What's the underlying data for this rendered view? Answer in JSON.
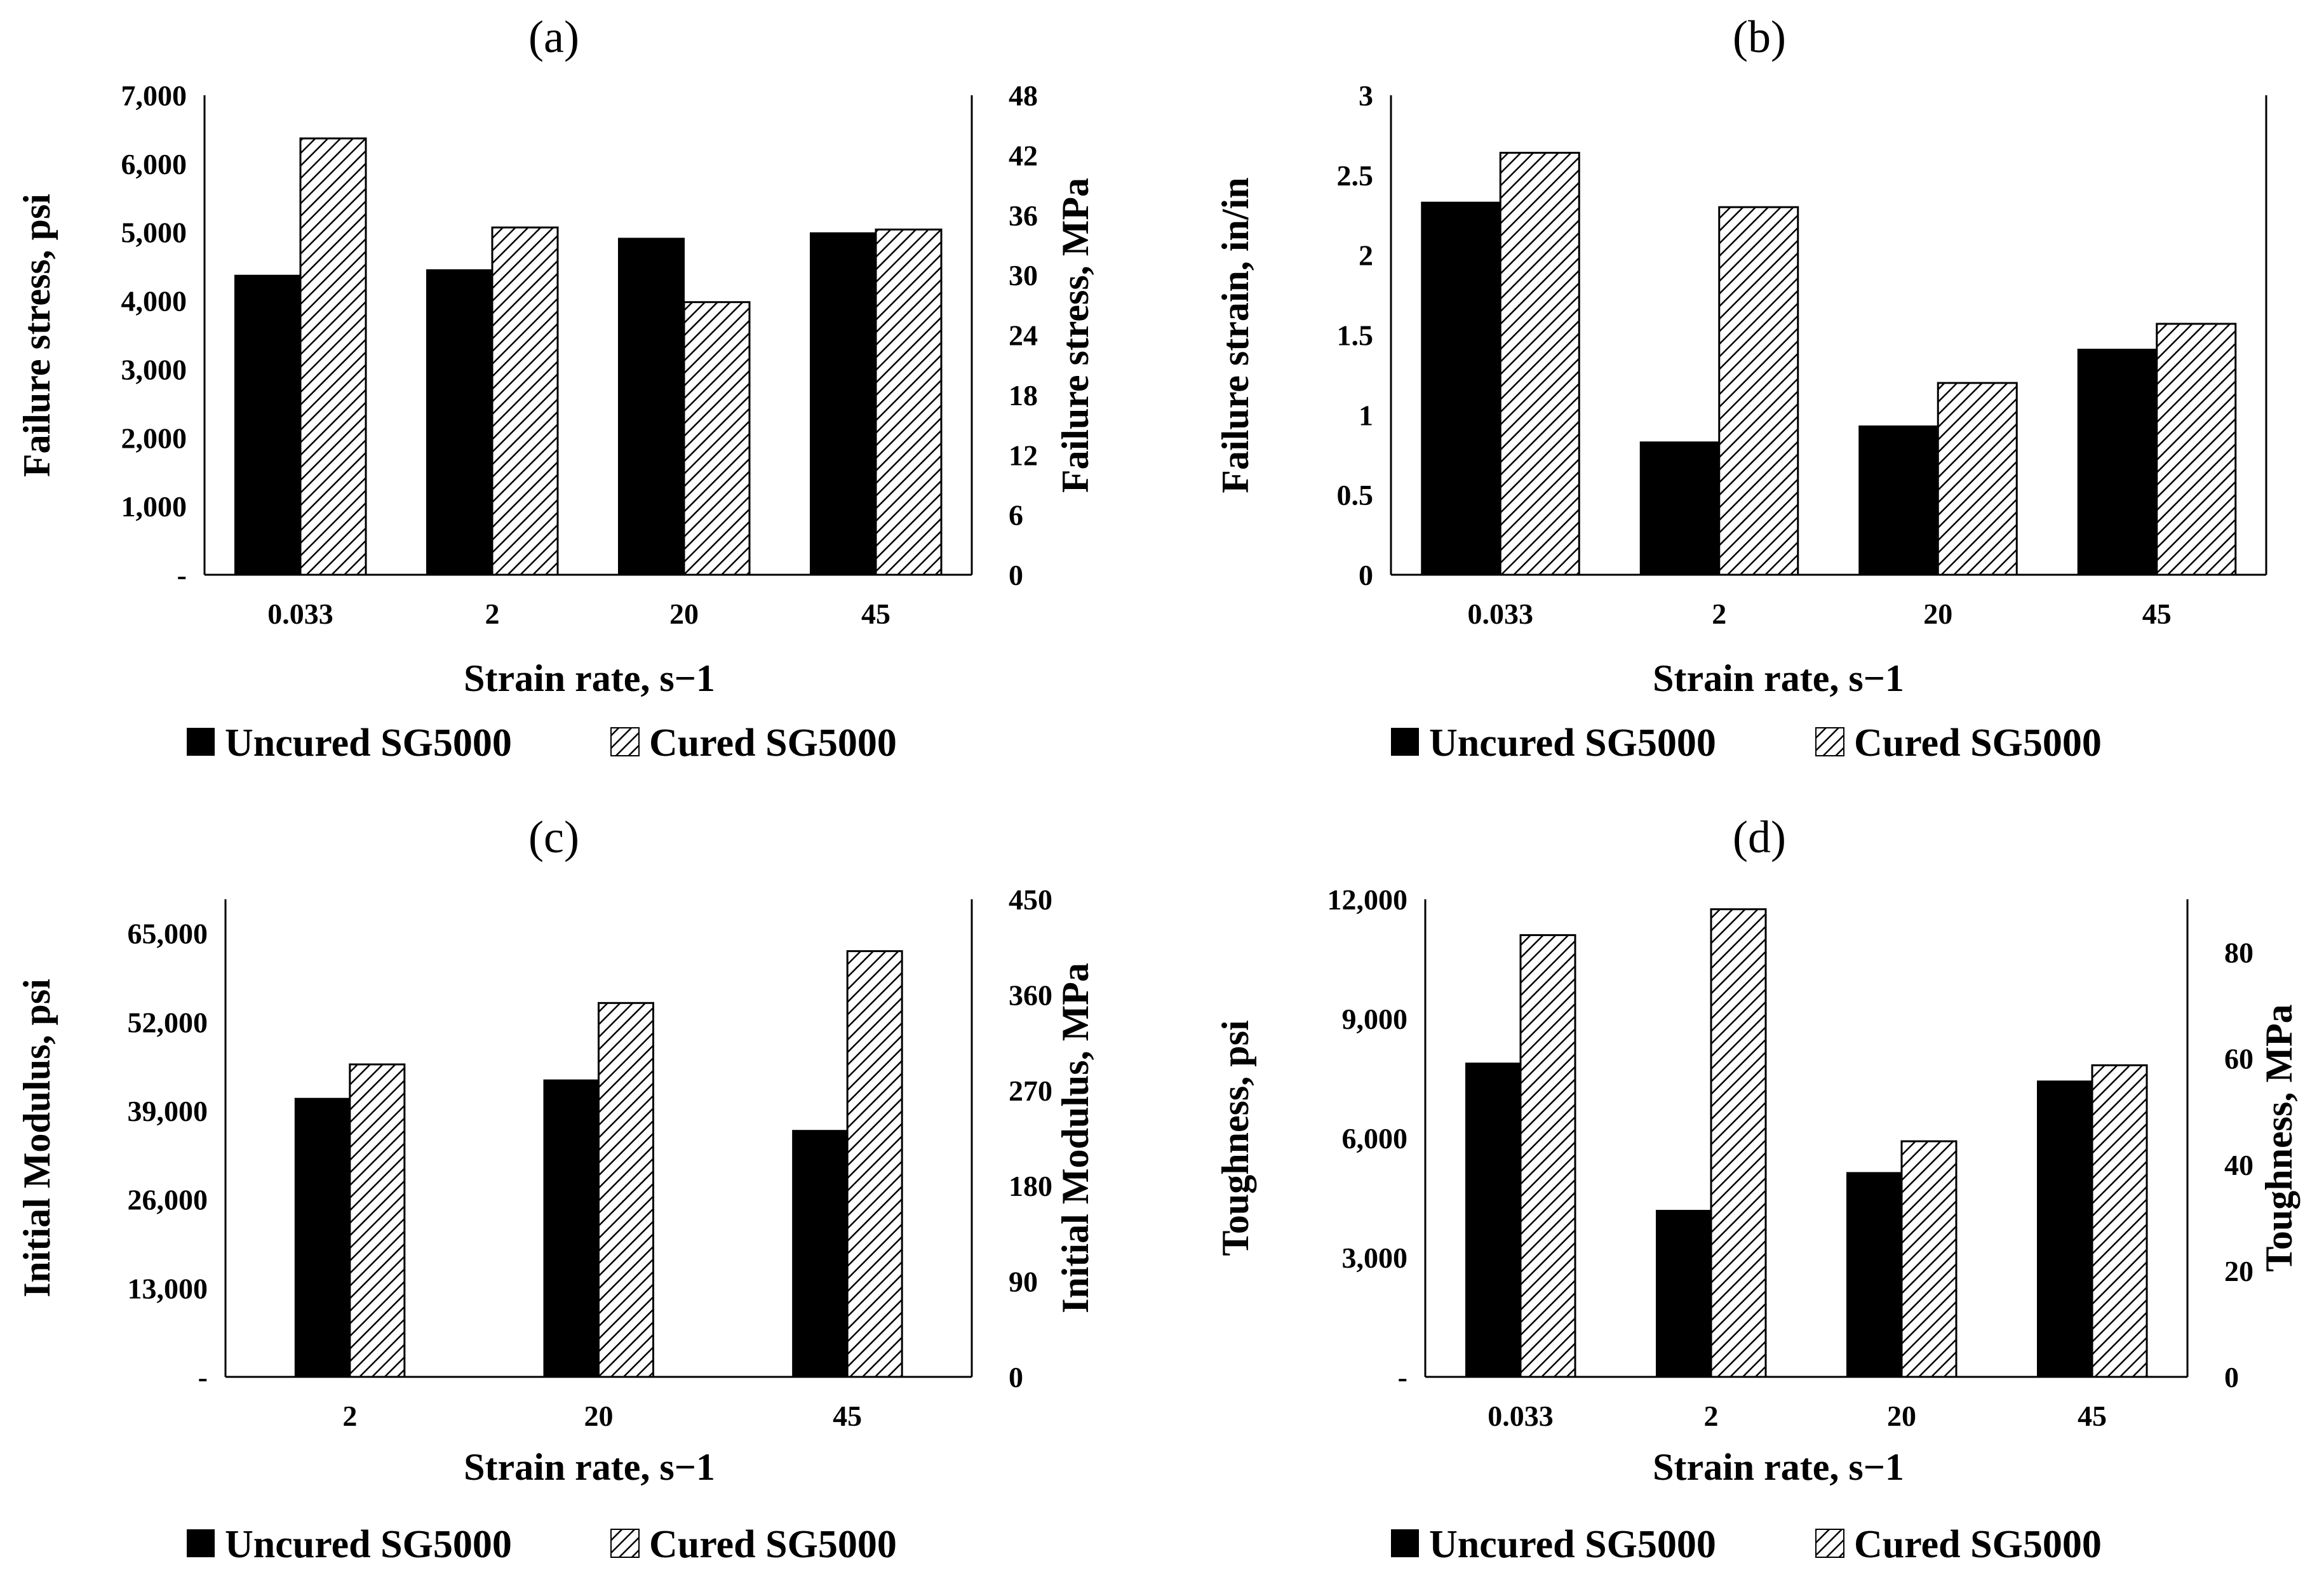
{
  "legend": {
    "uncured": "Uncured SG5000",
    "cured": "Cured SG5000"
  },
  "colors": {
    "uncured": "#000000",
    "cured_hatch": "#000000",
    "cured_bg": "#ffffff",
    "axis": "#000000"
  },
  "chart_data": [
    {
      "panel": "(a)",
      "type": "bar",
      "categories": [
        "0.033",
        "2",
        "20",
        "45"
      ],
      "series": [
        {
          "name": "Uncured SG5000",
          "values": [
            4370,
            4450,
            4910,
            4990
          ]
        },
        {
          "name": "Cured SG5000",
          "values": [
            6370,
            5070,
            3980,
            5040
          ]
        }
      ],
      "xlabel": "Strain rate, s−1",
      "ylabel": "Failure stress, psi",
      "ylim": [
        0,
        7000
      ],
      "yticks": [
        "-",
        "1,000",
        "2,000",
        "3,000",
        "4,000",
        "5,000",
        "6,000",
        "7,000"
      ],
      "y2label": "Failure stress, MPa",
      "y2lim": [
        0,
        48
      ],
      "y2ticks": [
        "0",
        "6",
        "12",
        "18",
        "24",
        "30",
        "36",
        "42",
        "48"
      ],
      "legend_position": "bottom"
    },
    {
      "panel": "(b)",
      "type": "bar",
      "categories": [
        "0.033",
        "2",
        "20",
        "45"
      ],
      "series": [
        {
          "name": "Uncured SG5000",
          "values": [
            2.33,
            0.83,
            0.93,
            1.41
          ]
        },
        {
          "name": "Cured SG5000",
          "values": [
            2.64,
            2.3,
            1.2,
            1.57
          ]
        }
      ],
      "xlabel": "Strain rate, s−1",
      "ylabel": "Failure strain, in/in",
      "ylim": [
        0,
        3
      ],
      "yticks": [
        "0",
        "0.5",
        "1",
        "1.5",
        "2",
        "2.5",
        "3"
      ],
      "legend_position": "bottom"
    },
    {
      "panel": "(c)",
      "type": "bar",
      "categories": [
        "2",
        "20",
        "45"
      ],
      "series": [
        {
          "name": "Uncured SG5000",
          "values": [
            40800,
            43500,
            36100
          ]
        },
        {
          "name": "Cured SG5000",
          "values": [
            45800,
            54800,
            62400
          ]
        }
      ],
      "xlabel": "Strain rate, s−1",
      "ylabel": "Initial Modulus, psi",
      "ylim": [
        0,
        70000
      ],
      "yticks": [
        "-",
        "13,000",
        "26,000",
        "39,000",
        "52,000",
        "65,000"
      ],
      "y2label": "Initial Modulus, MPa",
      "y2lim": [
        0,
        450
      ],
      "y2ticks": [
        "0",
        "90",
        "180",
        "270",
        "360",
        "450"
      ],
      "legend_position": "bottom"
    },
    {
      "panel": "(d)",
      "type": "bar",
      "categories": [
        "0.033",
        "2",
        "20",
        "45"
      ],
      "series": [
        {
          "name": "Uncured SG5000",
          "values": [
            7880,
            4180,
            5130,
            7430
          ]
        },
        {
          "name": "Cured SG5000",
          "values": [
            11100,
            11750,
            5920,
            7830
          ]
        }
      ],
      "xlabel": "Strain rate, s−1",
      "ylabel": "Toughness, psi",
      "ylim": [
        0,
        12000
      ],
      "yticks": [
        "-",
        "3,000",
        "6,000",
        "9,000",
        "12,000"
      ],
      "y2label": "Toughness, MPa",
      "y2lim": [
        0,
        90
      ],
      "y2ticks": [
        "0",
        "20",
        "40",
        "60",
        "80"
      ],
      "legend_position": "bottom"
    }
  ]
}
